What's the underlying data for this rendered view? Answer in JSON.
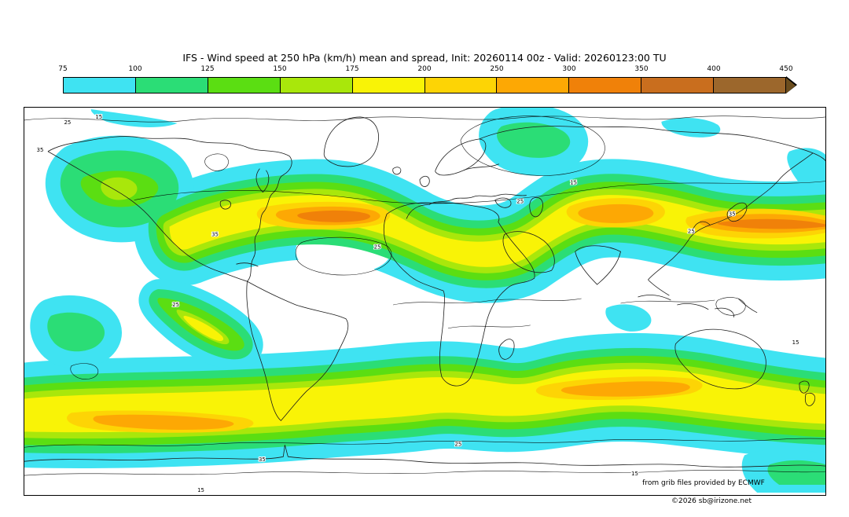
{
  "header": {
    "title": "IFS - Wind speed at 250 hPa (km/h) mean and spread, Init: 20260114 00z - Valid: 20260123:00 TU"
  },
  "footer": {
    "credit": "from grib files provided by ECMWF",
    "copyright": "©2026 sb@irizone.net"
  },
  "chart_data": {
    "type": "heatmap",
    "model": "IFS",
    "variable": "Wind speed at 250 hPa",
    "statistic": "mean and spread",
    "units": "km/h",
    "init": "20260114 00z",
    "valid": "20260123:00 TU",
    "projection": "global world map, filled contours of ensemble-mean wind speed with black ensemble-spread contour lines",
    "scale": {
      "tick_labels": [
        "75",
        "100",
        "125",
        "150",
        "175",
        "200",
        "250",
        "300",
        "350",
        "400",
        "450"
      ],
      "segment_colors": [
        "#3FE3F2",
        "#2BDD76",
        "#5BDE12",
        "#A9E70B",
        "#F9F306",
        "#FDD405",
        "#FDA804",
        "#F08109",
        "#C96E1E",
        "#9C672C"
      ],
      "arrow_color": "#6B4D1E"
    },
    "contour_labels": {
      "s15": "15",
      "s25": "25",
      "s35": "35"
    },
    "spread_contour_values": [
      15,
      25,
      35
    ],
    "jet_features": [
      {
        "region": "North America / North Atlantic jet",
        "mean_peak_kmh": "250-300"
      },
      {
        "region": "Europe / Mediterranean band",
        "mean_peak_kmh": "200-250"
      },
      {
        "region": "East Asia / Northwest Pacific jet",
        "mean_peak_kmh": "250-325"
      },
      {
        "region": "Southern hemisphere jet, South Atlantic sector",
        "mean_peak_kmh": "250-300"
      },
      {
        "region": "Southern hemisphere jet, South Indian Ocean / Australia sector",
        "mean_peak_kmh": "250-300"
      }
    ]
  }
}
